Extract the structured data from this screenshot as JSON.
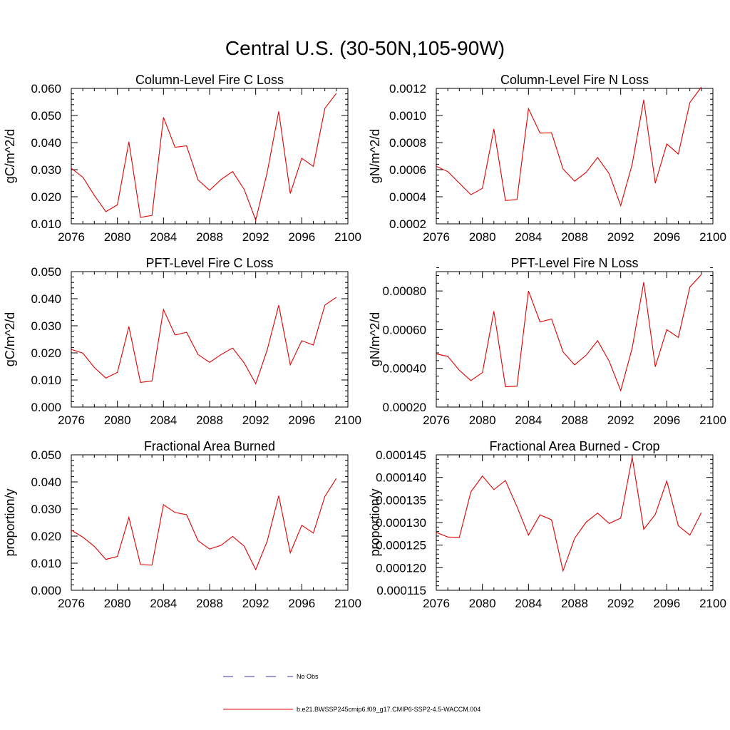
{
  "figure": {
    "title": "Central U.S. (30-50N,105-90W)"
  },
  "legend": [
    {
      "label": "No Obs",
      "color": "#3a3a9a",
      "style": "dashed"
    },
    {
      "label": "b.e21.BWSSP245cmip6.f09_g17.CMIP6-SSP2-4.5-WACCM.004",
      "color": "#e00000",
      "style": "solid"
    }
  ],
  "chart_data": [
    {
      "type": "line",
      "title": "Column-Level Fire C Loss",
      "ylabel": "gC/m^2/d",
      "xlim": [
        2076,
        2100
      ],
      "ylim": [
        0.01,
        0.06
      ],
      "xticks": [
        2076,
        2080,
        2084,
        2088,
        2092,
        2096,
        2100
      ],
      "yticks": [
        "0.010",
        "0.020",
        "0.030",
        "0.040",
        "0.050",
        "0.060"
      ],
      "x": [
        2076,
        2077,
        2078,
        2079,
        2080,
        2081,
        2082,
        2083,
        2084,
        2085,
        2086,
        2087,
        2088,
        2089,
        2090,
        2091,
        2092,
        2093,
        2094,
        2095,
        2096,
        2097,
        2098,
        2099
      ],
      "series": [
        {
          "color": "#e00000",
          "values": [
            0.0305,
            0.0272,
            0.0205,
            0.0145,
            0.017,
            0.0403,
            0.0124,
            0.0131,
            0.0493,
            0.0383,
            0.0388,
            0.0262,
            0.0224,
            0.0264,
            0.0293,
            0.0227,
            0.0114,
            0.029,
            0.0515,
            0.0212,
            0.0342,
            0.0312,
            0.0526,
            0.0582
          ]
        }
      ]
    },
    {
      "type": "line",
      "title": "Column-Level Fire N Loss",
      "ylabel": "gN/m^2/d",
      "xlim": [
        2076,
        2100
      ],
      "ylim": [
        0.0002,
        0.0012
      ],
      "xticks": [
        2076,
        2080,
        2084,
        2088,
        2092,
        2096,
        2100
      ],
      "yticks": [
        "0.0002",
        "0.0004",
        "0.0006",
        "0.0008",
        "0.0010",
        "0.0012"
      ],
      "x": [
        2076,
        2077,
        2078,
        2079,
        2080,
        2081,
        2082,
        2083,
        2084,
        2085,
        2086,
        2087,
        2088,
        2089,
        2090,
        2091,
        2092,
        2093,
        2094,
        2095,
        2096,
        2097,
        2098,
        2099
      ],
      "series": [
        {
          "color": "#e00000",
          "values": [
            0.000625,
            0.000585,
            0.0005,
            0.000415,
            0.000462,
            0.0009,
            0.000372,
            0.00038,
            0.00105,
            0.00087,
            0.000872,
            0.000605,
            0.000515,
            0.00058,
            0.00069,
            0.00057,
            0.000335,
            0.00064,
            0.001115,
            0.0005,
            0.00079,
            0.000715,
            0.001095,
            0.00121
          ]
        }
      ]
    },
    {
      "type": "line",
      "title": "PFT-Level Fire C Loss",
      "ylabel": "gC/m^2/d",
      "xlim": [
        2076,
        2100
      ],
      "ylim": [
        0.0,
        0.05
      ],
      "xticks": [
        2076,
        2080,
        2084,
        2088,
        2092,
        2096,
        2100
      ],
      "yticks": [
        "0.000",
        "0.010",
        "0.020",
        "0.030",
        "0.040",
        "0.050"
      ],
      "x": [
        2076,
        2077,
        2078,
        2079,
        2080,
        2081,
        2082,
        2083,
        2084,
        2085,
        2086,
        2087,
        2088,
        2089,
        2090,
        2091,
        2092,
        2093,
        2094,
        2095,
        2096,
        2097,
        2098,
        2099
      ],
      "series": [
        {
          "color": "#e00000",
          "values": [
            0.0213,
            0.0199,
            0.0146,
            0.0107,
            0.0128,
            0.0297,
            0.0091,
            0.0096,
            0.036,
            0.0266,
            0.0276,
            0.0194,
            0.0165,
            0.0194,
            0.0218,
            0.0163,
            0.0086,
            0.0211,
            0.0376,
            0.0156,
            0.0245,
            0.0229,
            0.0376,
            0.0405
          ]
        }
      ]
    },
    {
      "type": "line",
      "title": "PFT-Level Fire N Loss",
      "ylabel": "gN/m^2/d",
      "xlim": [
        2076,
        2100
      ],
      "ylim": [
        0.0002,
        0.0009
      ],
      "xticks": [
        2076,
        2080,
        2084,
        2088,
        2092,
        2096,
        2100
      ],
      "yticks": [
        "0.00020",
        "0.00040",
        "0.00060",
        "0.00080"
      ],
      "ytick_values": [
        0.0002,
        0.0004,
        0.0006,
        0.0008
      ],
      "x": [
        2076,
        2077,
        2078,
        2079,
        2080,
        2081,
        2082,
        2083,
        2084,
        2085,
        2086,
        2087,
        2088,
        2089,
        2090,
        2091,
        2092,
        2093,
        2094,
        2095,
        2096,
        2097,
        2098,
        2099
      ],
      "series": [
        {
          "color": "#e00000",
          "values": [
            0.000475,
            0.000462,
            0.00039,
            0.000337,
            0.000378,
            0.000695,
            0.000305,
            0.000308,
            0.0008,
            0.00064,
            0.000655,
            0.000485,
            0.000418,
            0.000468,
            0.000543,
            0.000437,
            0.000285,
            0.000505,
            0.000845,
            0.000408,
            0.0006,
            0.00056,
            0.00082,
            0.000885
          ]
        }
      ]
    },
    {
      "type": "line",
      "title": "Fractional Area Burned",
      "ylabel": "proportion/y",
      "xlim": [
        2076,
        2100
      ],
      "ylim": [
        0.0,
        0.05
      ],
      "xticks": [
        2076,
        2080,
        2084,
        2088,
        2092,
        2096,
        2100
      ],
      "yticks": [
        "0.000",
        "0.010",
        "0.020",
        "0.030",
        "0.040",
        "0.050"
      ],
      "x": [
        2076,
        2077,
        2078,
        2079,
        2080,
        2081,
        2082,
        2083,
        2084,
        2085,
        2086,
        2087,
        2088,
        2089,
        2090,
        2091,
        2092,
        2093,
        2094,
        2095,
        2096,
        2097,
        2098,
        2099
      ],
      "series": [
        {
          "color": "#e00000",
          "values": [
            0.0222,
            0.0196,
            0.0162,
            0.0114,
            0.0125,
            0.0269,
            0.0095,
            0.0093,
            0.0316,
            0.0287,
            0.0279,
            0.0183,
            0.0152,
            0.0166,
            0.0199,
            0.0163,
            0.0076,
            0.0181,
            0.0349,
            0.0138,
            0.024,
            0.0211,
            0.0346,
            0.0413
          ]
        }
      ]
    },
    {
      "type": "line",
      "title": "Fractional Area Burned - Crop",
      "ylabel": "proportion/y",
      "xlim": [
        2076,
        2100
      ],
      "ylim": [
        0.000115,
        0.000145
      ],
      "xticks": [
        2076,
        2080,
        2084,
        2088,
        2092,
        2096,
        2100
      ],
      "yticks": [
        "0.000115",
        "0.000120",
        "0.000125",
        "0.000130",
        "0.000135",
        "0.000140",
        "0.000145"
      ],
      "x": [
        2076,
        2077,
        2078,
        2079,
        2080,
        2081,
        2082,
        2083,
        2084,
        2085,
        2086,
        2087,
        2088,
        2089,
        2090,
        2091,
        2092,
        2093,
        2094,
        2095,
        2096,
        2097,
        2098,
        2099
      ],
      "series": [
        {
          "color": "#e00000",
          "values": [
            0.0001278,
            0.0001268,
            0.0001267,
            0.0001368,
            0.0001403,
            0.0001373,
            0.0001393,
            0.0001335,
            0.0001272,
            0.0001317,
            0.0001306,
            0.0001193,
            0.0001265,
            0.0001301,
            0.0001321,
            0.0001298,
            0.000131,
            0.0001445,
            0.0001285,
            0.0001318,
            0.0001392,
            0.0001293,
            0.0001272,
            0.0001322
          ]
        }
      ]
    }
  ]
}
